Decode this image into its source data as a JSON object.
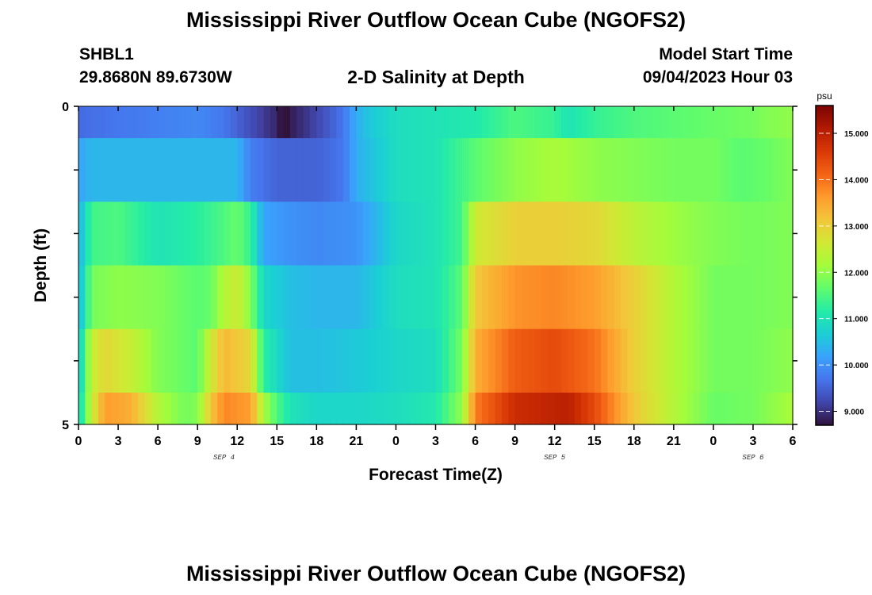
{
  "header": {
    "title": "Mississippi River Outflow Ocean Cube (NGOFS2)",
    "station_id": "SHBL1",
    "coords": "29.8680N  89.6730W",
    "subtitle": "2-D Salinity at Depth",
    "start_label": "Model Start Time",
    "start_value": "09/04/2023 Hour 03"
  },
  "footer": {
    "title": "Mississippi River Outflow Ocean Cube (NGOFS2)"
  },
  "chart_data": {
    "type": "heatmap",
    "xlabel": "Forecast Time(Z)",
    "ylabel": "Depth (ft)",
    "x_tick_labels": [
      "0",
      "3",
      "6",
      "9",
      "12",
      "15",
      "18",
      "21",
      "0",
      "3",
      "6",
      "9",
      "12",
      "15",
      "18",
      "21",
      "0",
      "3",
      "6"
    ],
    "x_date_labels": [
      {
        "label": "SEP 4",
        "hour": 11
      },
      {
        "label": "SEP 5",
        "hour": 36
      },
      {
        "label": "SEP 6",
        "hour": 51
      }
    ],
    "x_range_hours": [
      0,
      54
    ],
    "y_range": [
      0,
      5
    ],
    "y_tick_labels": [
      "0",
      "5"
    ],
    "colorbar": {
      "unit": "psu",
      "ticks": [
        "15.000",
        "14.000",
        "13.000",
        "12.000",
        "11.000",
        "10.000",
        "9.000"
      ],
      "range": [
        8.7,
        15.6
      ],
      "colors": [
        "#30123b",
        "#4145ab",
        "#4675ed",
        "#39a2fc",
        "#1bcfd4",
        "#24eca6",
        "#61fc6c",
        "#a4fc3b",
        "#d1e834",
        "#f3c63a",
        "#fe9b2d",
        "#f36315",
        "#d93806",
        "#b11901",
        "#7a0403"
      ]
    },
    "layers": [
      {
        "depth_band": "0-0.5",
        "knots": [
          [
            0,
            9.6
          ],
          [
            3,
            9.7
          ],
          [
            6,
            9.8
          ],
          [
            9,
            9.9
          ],
          [
            11,
            9.7
          ],
          [
            13,
            9.3
          ],
          [
            15,
            8.9
          ],
          [
            15.5,
            8.6
          ],
          [
            16,
            8.8
          ],
          [
            18,
            9.2
          ],
          [
            20,
            9.7
          ],
          [
            21,
            10.3
          ],
          [
            22,
            10.6
          ],
          [
            24,
            10.9
          ],
          [
            27,
            11.0
          ],
          [
            30,
            11.1
          ],
          [
            33,
            11.5
          ],
          [
            36,
            11.3
          ],
          [
            37,
            11.0
          ],
          [
            39,
            11.3
          ],
          [
            42,
            11.5
          ],
          [
            45,
            11.6
          ],
          [
            48,
            11.7
          ],
          [
            51,
            11.8
          ],
          [
            52,
            11.9
          ],
          [
            54,
            12.0
          ]
        ]
      },
      {
        "depth_band": "0.5-1.5",
        "knots": [
          [
            0,
            10.2
          ],
          [
            1,
            10.4
          ],
          [
            3,
            10.4
          ],
          [
            9,
            10.4
          ],
          [
            12,
            10.4
          ],
          [
            13,
            9.8
          ],
          [
            15,
            9.5
          ],
          [
            18,
            9.5
          ],
          [
            20,
            9.7
          ],
          [
            21,
            10.3
          ],
          [
            24,
            10.9
          ],
          [
            27,
            11.0
          ],
          [
            30,
            11.6
          ],
          [
            33,
            12.0
          ],
          [
            36,
            12.2
          ],
          [
            39,
            12.0
          ],
          [
            42,
            11.9
          ],
          [
            45,
            11.8
          ],
          [
            48,
            11.8
          ],
          [
            50,
            11.6
          ],
          [
            52,
            11.7
          ],
          [
            54,
            11.9
          ]
        ]
      },
      {
        "depth_band": "1.5-2.5",
        "knots": [
          [
            0,
            10.3
          ],
          [
            1,
            11.4
          ],
          [
            3,
            11.5
          ],
          [
            6,
            11.0
          ],
          [
            9,
            11.2
          ],
          [
            11,
            11.5
          ],
          [
            12,
            11.7
          ],
          [
            13,
            11.3
          ],
          [
            14,
            10.2
          ],
          [
            16,
            10.0
          ],
          [
            18,
            9.9
          ],
          [
            21,
            10.0
          ],
          [
            24,
            10.8
          ],
          [
            27,
            11.0
          ],
          [
            29,
            11.4
          ],
          [
            30,
            12.6
          ],
          [
            33,
            13.0
          ],
          [
            36,
            13.0
          ],
          [
            39,
            12.9
          ],
          [
            42,
            12.4
          ],
          [
            45,
            12.1
          ],
          [
            48,
            11.9
          ],
          [
            51,
            11.8
          ],
          [
            54,
            11.9
          ]
        ]
      },
      {
        "depth_band": "2.5-3.5",
        "knots": [
          [
            0,
            10.3
          ],
          [
            1,
            11.8
          ],
          [
            3,
            12.0
          ],
          [
            6,
            11.9
          ],
          [
            9,
            11.6
          ],
          [
            10,
            11.7
          ],
          [
            11,
            12.3
          ],
          [
            12,
            12.6
          ],
          [
            13,
            11.9
          ],
          [
            14,
            10.8
          ],
          [
            16,
            10.5
          ],
          [
            18,
            10.4
          ],
          [
            21,
            10.4
          ],
          [
            24,
            10.9
          ],
          [
            27,
            11.0
          ],
          [
            29,
            11.6
          ],
          [
            30,
            13.1
          ],
          [
            33,
            13.7
          ],
          [
            36,
            13.8
          ],
          [
            39,
            13.6
          ],
          [
            42,
            13.0
          ],
          [
            45,
            12.3
          ],
          [
            48,
            11.8
          ],
          [
            51,
            11.8
          ],
          [
            54,
            11.9
          ]
        ]
      },
      {
        "depth_band": "3.5-4.5",
        "knots": [
          [
            0,
            10.5
          ],
          [
            1,
            12.5
          ],
          [
            2,
            12.9
          ],
          [
            4,
            12.5
          ],
          [
            6,
            11.9
          ],
          [
            9,
            11.6
          ],
          [
            10,
            12.6
          ],
          [
            11,
            13.3
          ],
          [
            13,
            12.9
          ],
          [
            14,
            11.2
          ],
          [
            16,
            10.5
          ],
          [
            18,
            10.5
          ],
          [
            21,
            10.6
          ],
          [
            24,
            10.8
          ],
          [
            27,
            10.9
          ],
          [
            29,
            11.8
          ],
          [
            30,
            13.4
          ],
          [
            33,
            14.2
          ],
          [
            36,
            14.4
          ],
          [
            39,
            14.0
          ],
          [
            42,
            13.0
          ],
          [
            45,
            12.3
          ],
          [
            48,
            11.8
          ],
          [
            51,
            11.8
          ],
          [
            54,
            12.0
          ]
        ]
      },
      {
        "depth_band": "4.5-5",
        "knots": [
          [
            0,
            10.7
          ],
          [
            1,
            12.5
          ],
          [
            2,
            13.6
          ],
          [
            4,
            13.4
          ],
          [
            6,
            12.3
          ],
          [
            8,
            11.8
          ],
          [
            9,
            11.9
          ],
          [
            10,
            13.1
          ],
          [
            11,
            13.8
          ],
          [
            13,
            13.6
          ],
          [
            14,
            12.2
          ],
          [
            15,
            11.5
          ],
          [
            16,
            11.0
          ],
          [
            18,
            10.8
          ],
          [
            21,
            10.8
          ],
          [
            24,
            10.9
          ],
          [
            27,
            11.1
          ],
          [
            29,
            12.0
          ],
          [
            30,
            13.9
          ],
          [
            33,
            14.8
          ],
          [
            37,
            15.0
          ],
          [
            39,
            14.4
          ],
          [
            42,
            13.1
          ],
          [
            45,
            12.3
          ],
          [
            48,
            11.7
          ],
          [
            51,
            11.8
          ],
          [
            54,
            12.2
          ]
        ]
      }
    ]
  }
}
